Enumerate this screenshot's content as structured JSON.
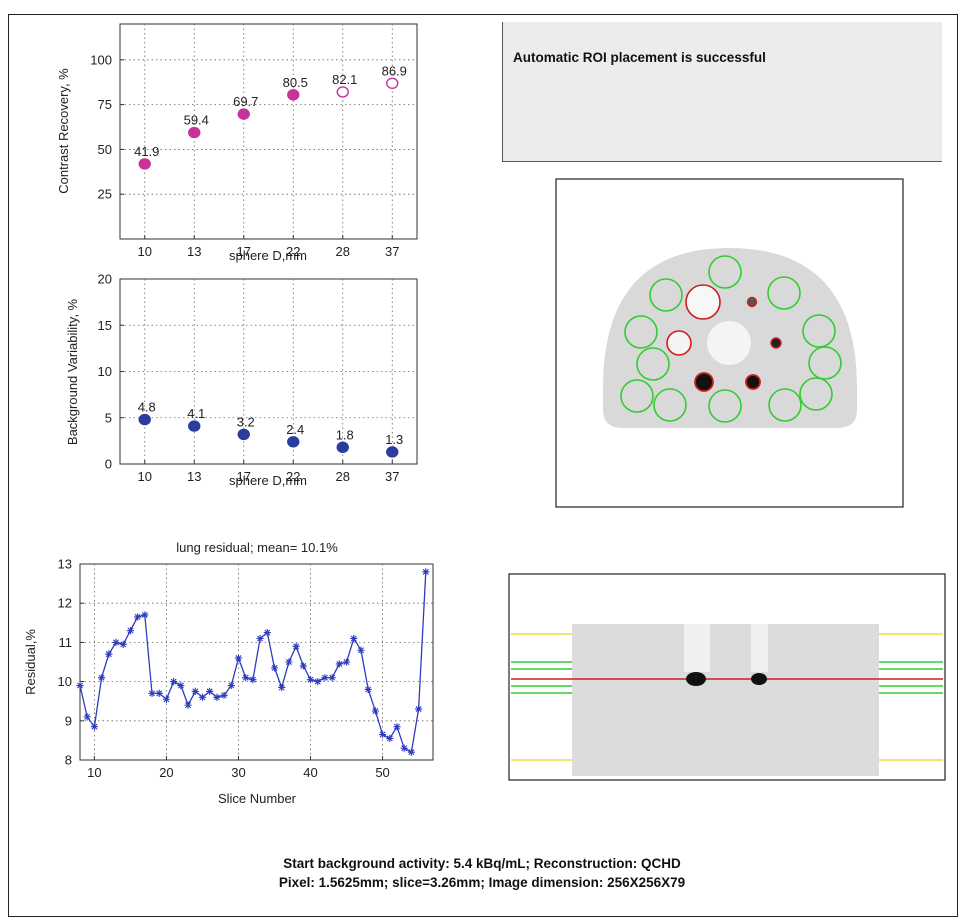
{
  "status": {
    "message": "Automatic ROI placement is successful"
  },
  "footer": {
    "line1": "Start background activity: 5.4 kBq/mL; Reconstruction: QCHD",
    "line2": "Pixel: 1.5625mm; slice=3.26mm; Image dimension: 256X256X79"
  },
  "colors": {
    "magenta": "#c8329b",
    "navy": "#2a3d9e",
    "series_blue": "#2e3cc0",
    "roi_green": "#33cc33",
    "roi_red": "#cc1f1f",
    "roi_yellow": "#e6e040"
  },
  "chart_data": [
    {
      "id": "contrast",
      "type": "scatter",
      "categories": [
        "10",
        "13",
        "17",
        "22",
        "28",
        "37"
      ],
      "values": [
        41.9,
        59.4,
        69.7,
        80.5,
        82.1,
        86.9
      ],
      "value_labels": [
        "41.9",
        "59.4",
        "69.7",
        "80.5",
        "82.1",
        "86.9"
      ],
      "filled": [
        true,
        true,
        true,
        true,
        false,
        false
      ],
      "xlabel": "sphere D,mm",
      "ylabel": "Contrast Recovery, %",
      "ylim": [
        0,
        120
      ],
      "yticks": [
        25,
        50,
        75,
        100
      ],
      "grid": true
    },
    {
      "id": "variability",
      "type": "scatter",
      "categories": [
        "10",
        "13",
        "17",
        "22",
        "28",
        "37"
      ],
      "values": [
        4.8,
        4.1,
        3.2,
        2.4,
        1.8,
        1.3
      ],
      "value_labels": [
        "4.8",
        "4.1",
        "3.2",
        "2.4",
        "1.8",
        "1.3"
      ],
      "xlabel": "sphere D,mm",
      "ylabel": "Background Variability, %",
      "ylim": [
        0,
        20
      ],
      "yticks": [
        0,
        5,
        10,
        15,
        20
      ],
      "grid": true
    },
    {
      "id": "residual",
      "type": "line",
      "title": "lung residual; mean= 10.1%",
      "xlabel": "Slice Number",
      "ylabel": "Residual,%",
      "xlim": [
        8,
        57
      ],
      "ylim": [
        8,
        13
      ],
      "xticks": [
        10,
        20,
        30,
        40,
        50
      ],
      "yticks": [
        8,
        9,
        10,
        11,
        12,
        13
      ],
      "x": [
        8,
        9,
        10,
        11,
        12,
        13,
        14,
        15,
        16,
        17,
        18,
        19,
        20,
        21,
        22,
        23,
        24,
        25,
        26,
        27,
        28,
        29,
        30,
        31,
        32,
        33,
        34,
        35,
        36,
        37,
        38,
        39,
        40,
        41,
        42,
        43,
        44,
        45,
        46,
        47,
        48,
        49,
        50,
        51,
        52,
        53,
        54,
        55,
        56
      ],
      "values": [
        9.9,
        9.1,
        8.85,
        10.1,
        10.7,
        11.0,
        10.95,
        11.3,
        11.65,
        11.7,
        9.7,
        9.7,
        9.55,
        10.0,
        9.9,
        9.4,
        9.75,
        9.6,
        9.75,
        9.6,
        9.65,
        9.9,
        10.6,
        10.1,
        10.05,
        11.1,
        11.25,
        10.35,
        9.85,
        10.5,
        10.9,
        10.4,
        10.05,
        10.0,
        10.1,
        10.1,
        10.45,
        10.5,
        11.1,
        10.8,
        9.8,
        9.25,
        8.65,
        8.55,
        8.85,
        8.3,
        8.2,
        9.3,
        12.8
      ],
      "grid": true
    }
  ]
}
